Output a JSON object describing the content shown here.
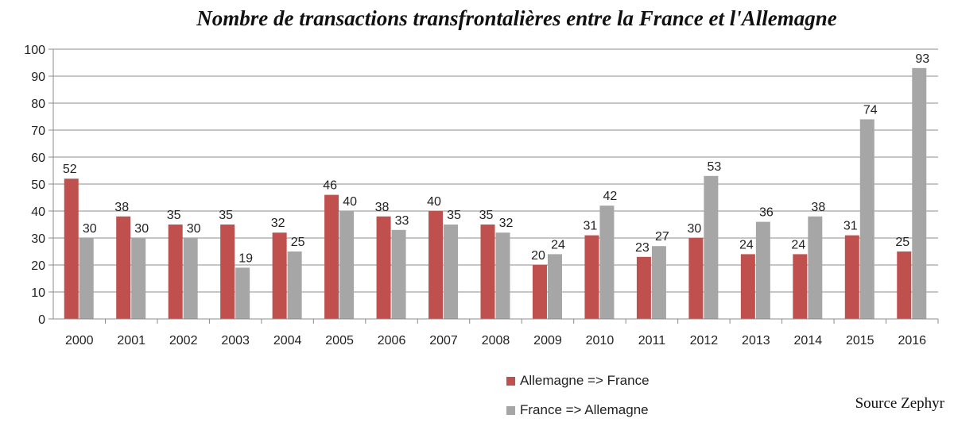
{
  "chart_data": {
    "type": "bar",
    "title": "Nombre de transactions transfrontalières entre la France et l'Allemagne",
    "categories": [
      "2000",
      "2001",
      "2002",
      "2003",
      "2004",
      "2005",
      "2006",
      "2007",
      "2008",
      "2009",
      "2010",
      "2011",
      "2012",
      "2013",
      "2014",
      "2015",
      "2016"
    ],
    "series": [
      {
        "name": "Allemagne => France",
        "color": "#c0504d",
        "values": [
          52,
          38,
          35,
          35,
          32,
          46,
          38,
          40,
          35,
          20,
          31,
          23,
          30,
          24,
          24,
          31,
          25
        ]
      },
      {
        "name": "France => Allemagne",
        "color": "#a6a6a6",
        "values": [
          30,
          30,
          30,
          19,
          25,
          40,
          33,
          35,
          32,
          24,
          42,
          27,
          53,
          36,
          38,
          74,
          93
        ]
      }
    ],
    "ylim": [
      0,
      100
    ],
    "yticks": [
      0,
      10,
      20,
      30,
      40,
      50,
      60,
      70,
      80,
      90,
      100
    ],
    "grid": true,
    "legend_position": "bottom-right",
    "data_labels": true,
    "source": "Source Zephyr"
  }
}
